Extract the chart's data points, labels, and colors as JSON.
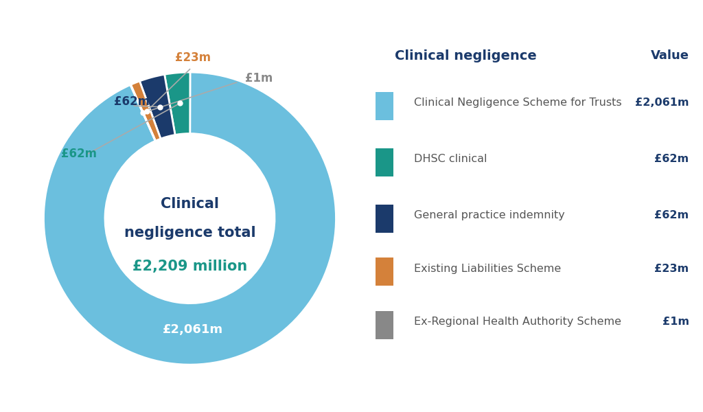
{
  "values": [
    2061,
    62,
    62,
    23,
    1
  ],
  "colors": [
    "#6BBFDE",
    "#1A9688",
    "#1B3A6B",
    "#D4813A",
    "#888888"
  ],
  "labels": [
    "Clinical Negligence Scheme for Trusts",
    "DHSC clinical",
    "General practice indemnity",
    "Existing Liabilities Scheme",
    "Ex-Regional Health Authority Scheme"
  ],
  "value_labels": [
    "£2,061m",
    "£62m",
    "£62m",
    "£23m",
    "£1m"
  ],
  "center_title_line1": "Clinical",
  "center_title_line2": "negligence total",
  "center_value": "£2,209 million",
  "legend_title": "Clinical negligence",
  "legend_col2": "Value",
  "legend_values": [
    "£2,061m",
    "£62m",
    "£62m",
    "£23m",
    "£1m"
  ],
  "background_color": "#FFFFFF",
  "title_color": "#1B3A6B",
  "center_value_color": "#1A9688",
  "label_colors": [
    "#FFFFFF",
    "#1A9688",
    "#1B3A6B",
    "#D4813A",
    "#888888"
  ],
  "annotation_dot_color": "#FFFFFF",
  "annotation_line_color": "#AAAAAA"
}
